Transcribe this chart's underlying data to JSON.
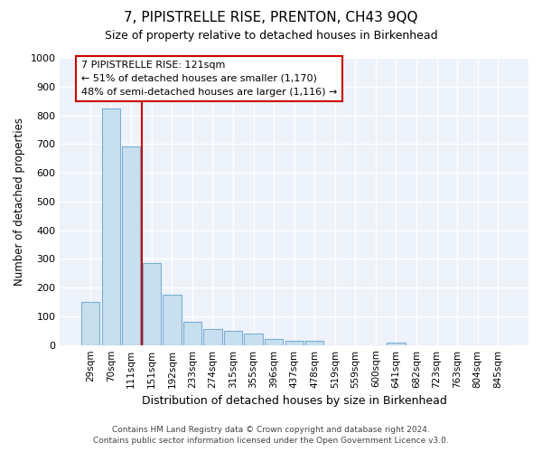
{
  "title1": "7, PIPISTRELLE RISE, PRENTON, CH43 9QQ",
  "title2": "Size of property relative to detached houses in Birkenhead",
  "xlabel": "Distribution of detached houses by size in Birkenhead",
  "ylabel": "Number of detached properties",
  "bar_labels": [
    "29sqm",
    "70sqm",
    "111sqm",
    "151sqm",
    "192sqm",
    "233sqm",
    "274sqm",
    "315sqm",
    "355sqm",
    "396sqm",
    "437sqm",
    "478sqm",
    "519sqm",
    "559sqm",
    "600sqm",
    "641sqm",
    "682sqm",
    "723sqm",
    "763sqm",
    "804sqm",
    "845sqm"
  ],
  "bar_values": [
    150,
    825,
    690,
    285,
    175,
    80,
    55,
    50,
    40,
    20,
    15,
    15,
    0,
    0,
    0,
    10,
    0,
    0,
    0,
    0,
    0
  ],
  "bar_fill_color": "#c8dff0",
  "bar_edge_color": "#7aafd4",
  "vline_x_pos": 2.5,
  "vline_color": "#cc0000",
  "annotation_title": "7 PIPISTRELLE RISE: 121sqm",
  "annotation_line1": "← 51% of detached houses are smaller (1,170)",
  "annotation_line2": "48% of semi-detached houses are larger (1,116) →",
  "ylim": [
    0,
    1000
  ],
  "yticks": [
    0,
    100,
    200,
    300,
    400,
    500,
    600,
    700,
    800,
    900,
    1000
  ],
  "footnote1": "Contains HM Land Registry data © Crown copyright and database right 2024.",
  "footnote2": "Contains public sector information licensed under the Open Government Licence v3.0.",
  "bg_color": "#ffffff",
  "plot_bg_color": "#edf2fb"
}
